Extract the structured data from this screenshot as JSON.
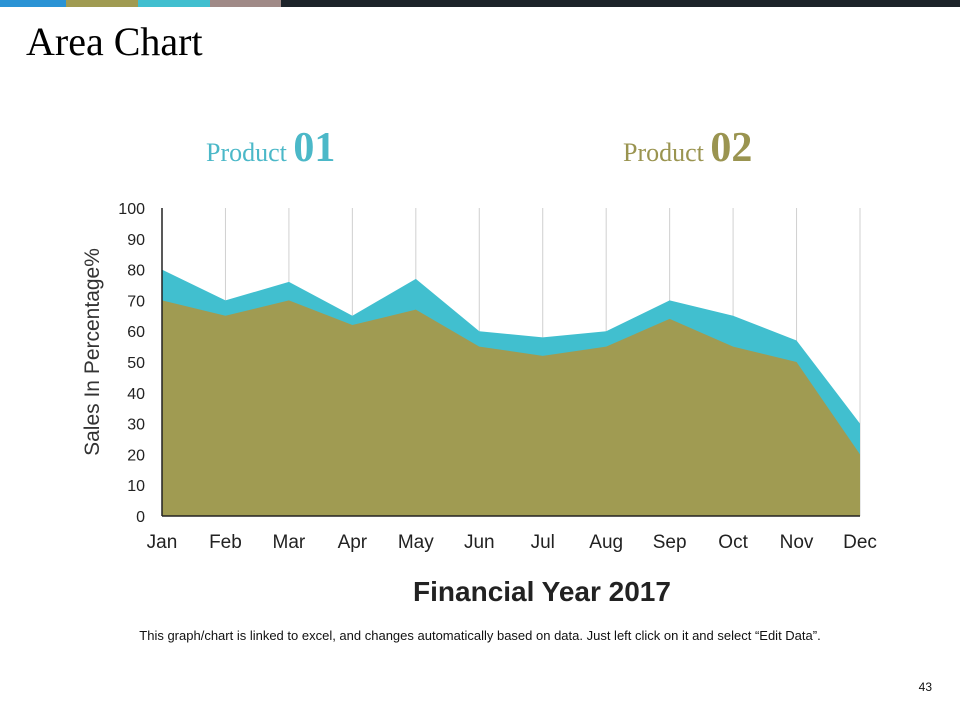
{
  "title": "Area Chart",
  "top_bar_colors": [
    "#2a93d5",
    "#a09b52",
    "#41bfcf",
    "#a08a87",
    "#1c2329"
  ],
  "legend": [
    {
      "label": "Product",
      "number": "01",
      "color": "#4bb8c8"
    },
    {
      "label": "Product",
      "number": "02",
      "color": "#9a9450"
    }
  ],
  "chart_data": {
    "type": "area",
    "title": "",
    "xlabel": "Financial Year 2017",
    "ylabel": "Sales In Percentage%",
    "ylim": [
      0,
      100
    ],
    "yticks": [
      "0",
      "10",
      "20",
      "30",
      "40",
      "50",
      "60",
      "70",
      "80",
      "90",
      "100"
    ],
    "categories": [
      "Jan",
      "Feb",
      "Mar",
      "Apr",
      "May",
      "Jun",
      "Jul",
      "Aug",
      "Sep",
      "Oct",
      "Nov",
      "Dec"
    ],
    "grid": "vertical",
    "legend_position": "top",
    "series": [
      {
        "name": "Product 01",
        "color": "#41bfcf",
        "values": [
          80,
          70,
          76,
          65,
          77,
          60,
          58,
          60,
          70,
          65,
          57,
          30
        ]
      },
      {
        "name": "Product 02",
        "color": "#a09b52",
        "values": [
          70,
          65,
          70,
          62,
          67,
          55,
          52,
          55,
          64,
          55,
          50,
          20
        ]
      }
    ]
  },
  "footnote": "This graph/chart is linked to excel, and changes automatically based on data. Just left click on it and select “Edit Data”.",
  "page_number": "43"
}
